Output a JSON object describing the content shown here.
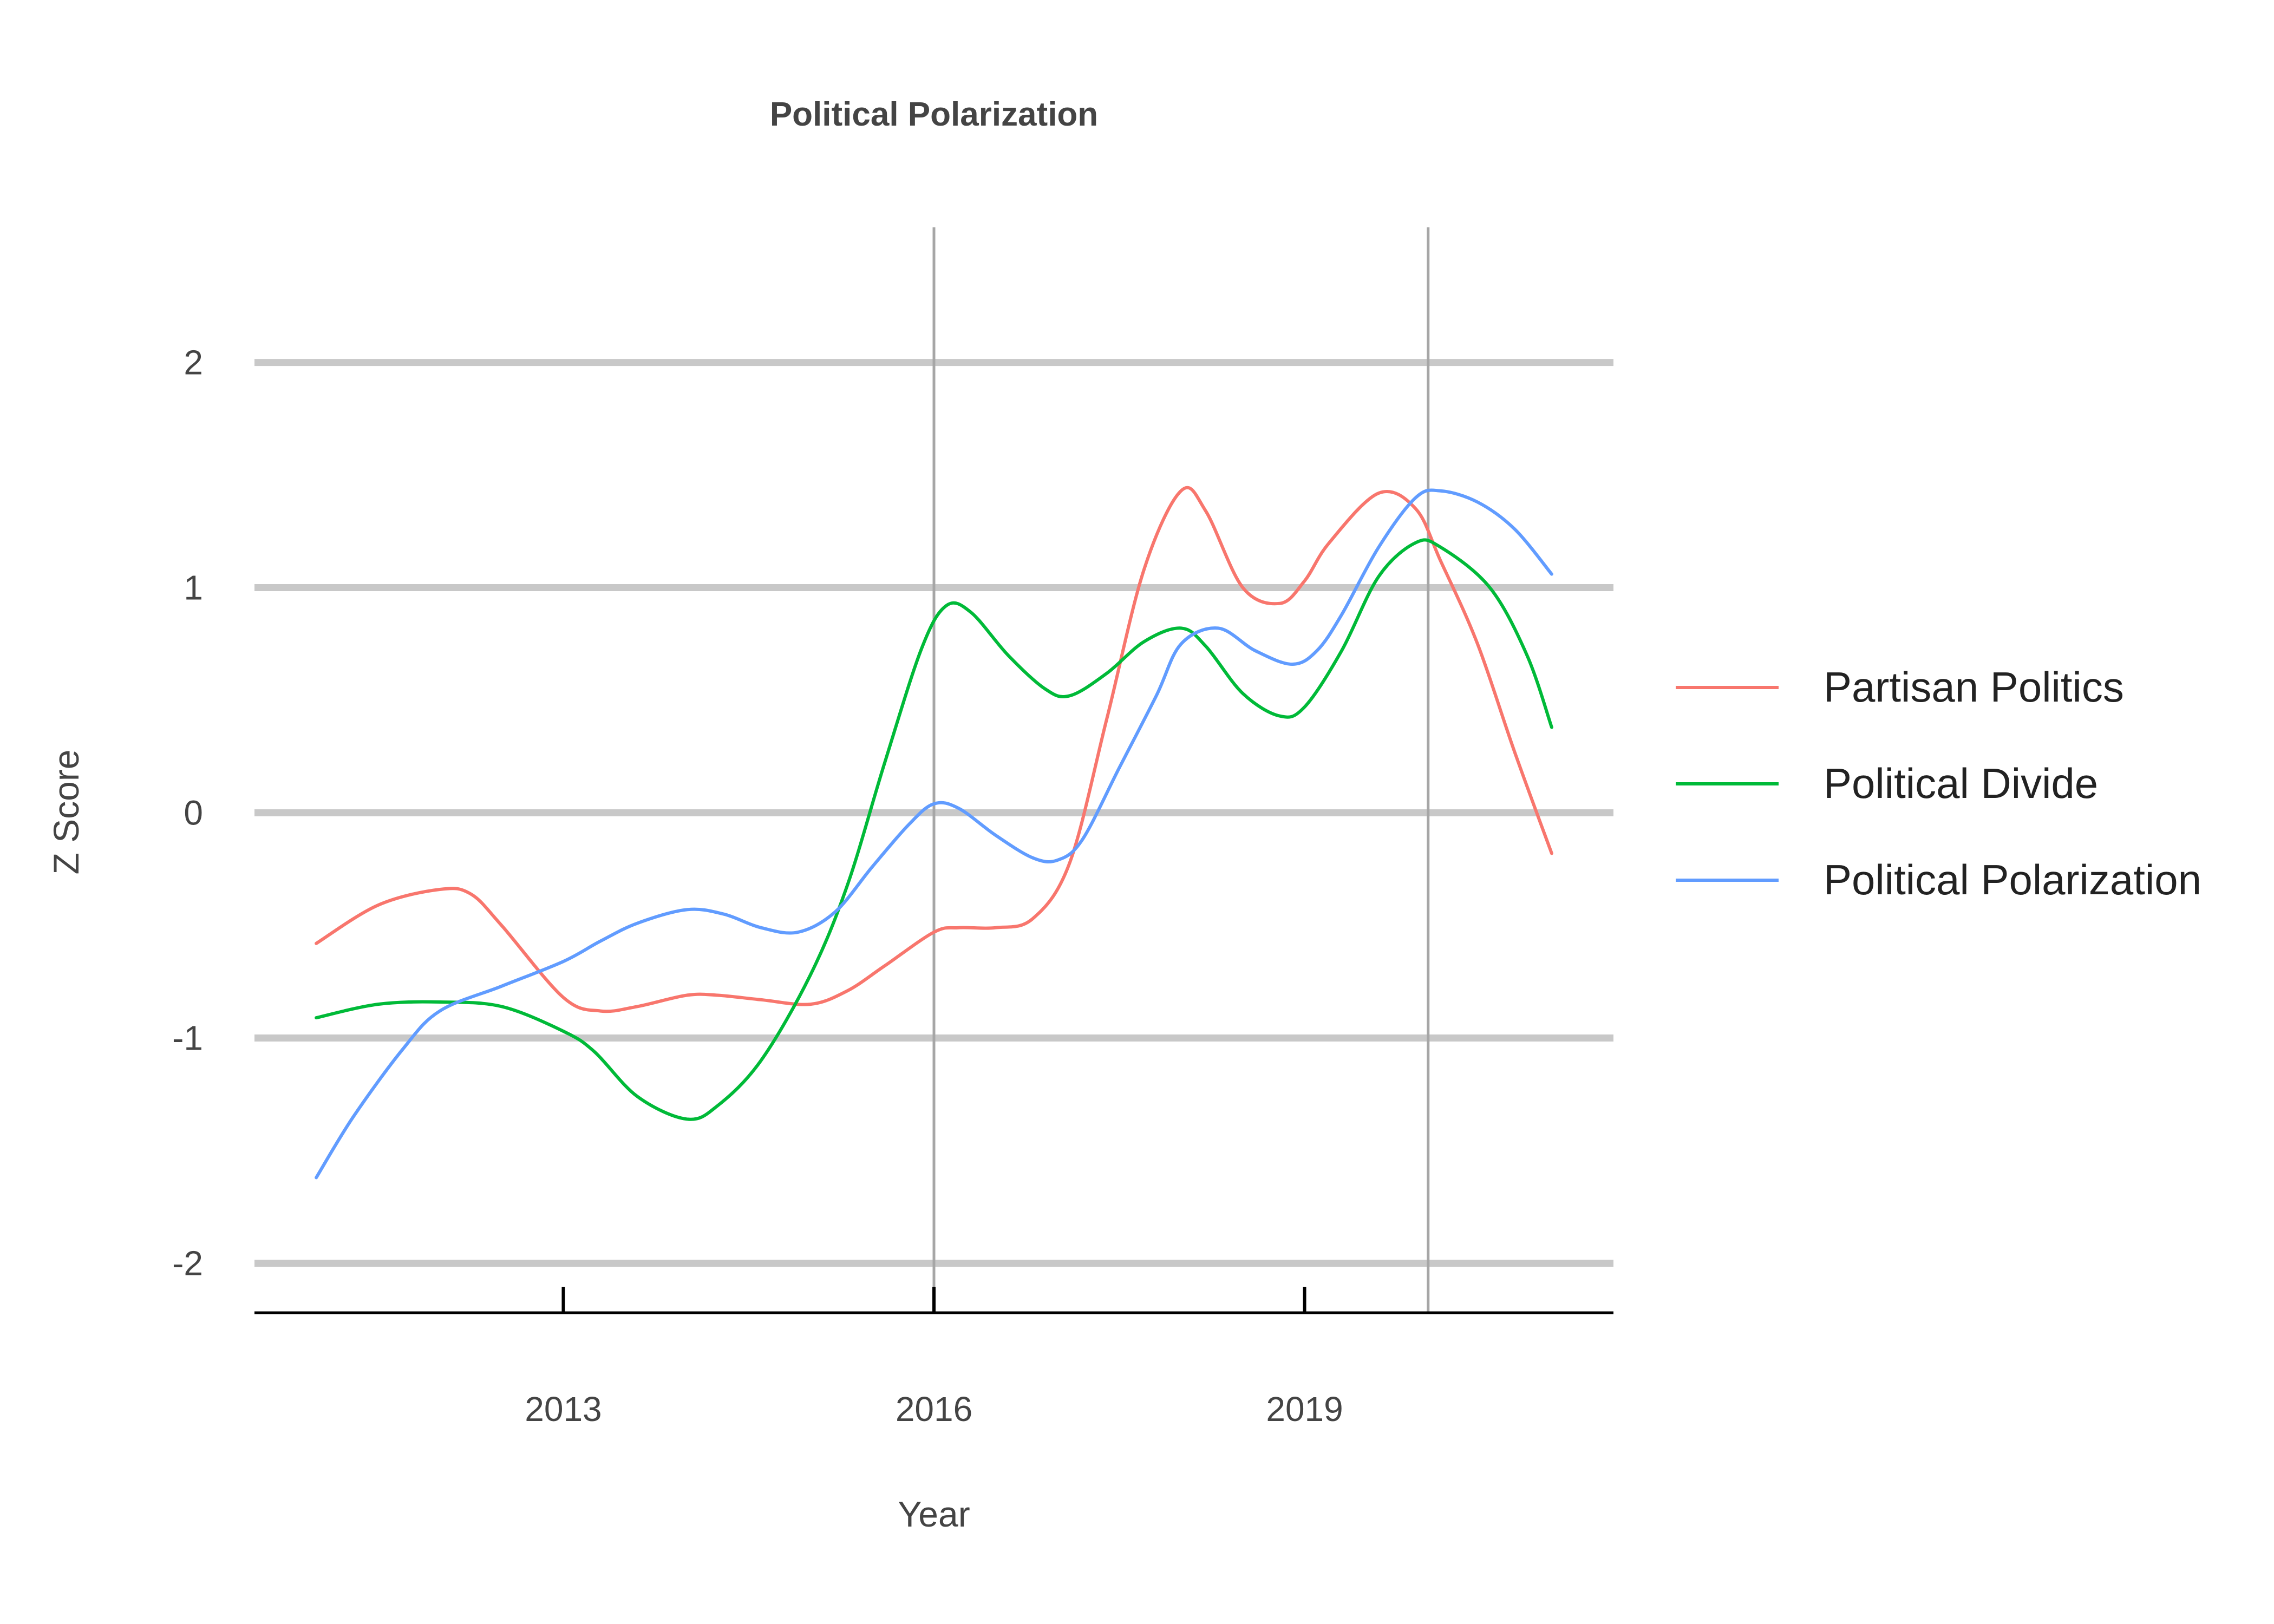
{
  "chart_data": {
    "type": "line",
    "title": "Political Polarization",
    "xlabel": "Year",
    "ylabel": "Z Score",
    "xlim": [
      2010.5,
      2021.5
    ],
    "ylim": [
      -2.22,
      2.6
    ],
    "x_ticks": [
      2013,
      2016,
      2019
    ],
    "y_ticks": [
      -2,
      -1,
      0,
      1,
      2
    ],
    "x_tick_labels": [
      "2013",
      "2016",
      "2019"
    ],
    "y_tick_labels": [
      "-2",
      "-1",
      "0",
      "1",
      "2"
    ],
    "vlines": [
      2016,
      2020
    ],
    "grid": "horizontal-major",
    "legend_position": "right",
    "series": [
      {
        "name": "Partisan Politics",
        "color": "#F8766D",
        "x": [
          2011.0,
          2011.5,
          2012.0,
          2012.25,
          2012.5,
          2013.0,
          2013.3,
          2013.6,
          2014.0,
          2014.25,
          2014.6,
          2015.0,
          2015.3,
          2015.6,
          2016.0,
          2016.2,
          2016.5,
          2016.8,
          2017.1,
          2017.4,
          2017.7,
          2018.0,
          2018.2,
          2018.5,
          2018.8,
          2019.0,
          2019.2,
          2019.6,
          2019.9,
          2020.1,
          2020.4,
          2020.7,
          2021.0
        ],
        "y": [
          -0.58,
          -0.41,
          -0.34,
          -0.36,
          -0.5,
          -0.82,
          -0.88,
          -0.86,
          -0.81,
          -0.81,
          -0.83,
          -0.85,
          -0.79,
          -0.68,
          -0.53,
          -0.51,
          -0.51,
          -0.47,
          -0.22,
          0.42,
          1.08,
          1.43,
          1.34,
          1.0,
          0.93,
          1.03,
          1.2,
          1.42,
          1.35,
          1.12,
          0.75,
          0.27,
          -0.18
        ]
      },
      {
        "name": "Political Divide",
        "color": "#00BA38",
        "x": [
          2011.0,
          2011.5,
          2012.0,
          2012.5,
          2013.0,
          2013.25,
          2013.6,
          2014.0,
          2014.25,
          2014.6,
          2015.0,
          2015.3,
          2015.6,
          2015.9,
          2016.1,
          2016.3,
          2016.6,
          2016.9,
          2017.1,
          2017.4,
          2017.7,
          2018.0,
          2018.2,
          2018.5,
          2018.8,
          2019.0,
          2019.3,
          2019.6,
          2019.9,
          2020.1,
          2020.5,
          2020.8,
          2021.0
        ],
        "y": [
          -0.91,
          -0.85,
          -0.84,
          -0.86,
          -0.97,
          -1.06,
          -1.26,
          -1.36,
          -1.3,
          -1.1,
          -0.72,
          -0.32,
          0.22,
          0.73,
          0.92,
          0.89,
          0.7,
          0.55,
          0.52,
          0.62,
          0.76,
          0.82,
          0.74,
          0.53,
          0.43,
          0.47,
          0.72,
          1.05,
          1.2,
          1.18,
          1.0,
          0.7,
          0.38
        ]
      },
      {
        "name": "Political Polarization",
        "color": "#619CFF",
        "x": [
          2011.0,
          2011.3,
          2011.7,
          2012.0,
          2012.5,
          2013.0,
          2013.3,
          2013.6,
          2014.0,
          2014.3,
          2014.6,
          2014.9,
          2015.2,
          2015.5,
          2015.8,
          2016.0,
          2016.2,
          2016.5,
          2016.8,
          2017.0,
          2017.2,
          2017.5,
          2017.8,
          2018.0,
          2018.3,
          2018.6,
          2018.9,
          2019.1,
          2019.3,
          2019.6,
          2019.9,
          2020.1,
          2020.4,
          2020.7,
          2021.0
        ],
        "y": [
          -1.62,
          -1.35,
          -1.05,
          -0.88,
          -0.77,
          -0.66,
          -0.57,
          -0.49,
          -0.43,
          -0.45,
          -0.51,
          -0.53,
          -0.44,
          -0.24,
          -0.05,
          0.04,
          0.02,
          -0.1,
          -0.2,
          -0.21,
          -0.12,
          0.2,
          0.52,
          0.75,
          0.82,
          0.72,
          0.66,
          0.72,
          0.88,
          1.18,
          1.4,
          1.43,
          1.38,
          1.26,
          1.06
        ]
      }
    ]
  }
}
